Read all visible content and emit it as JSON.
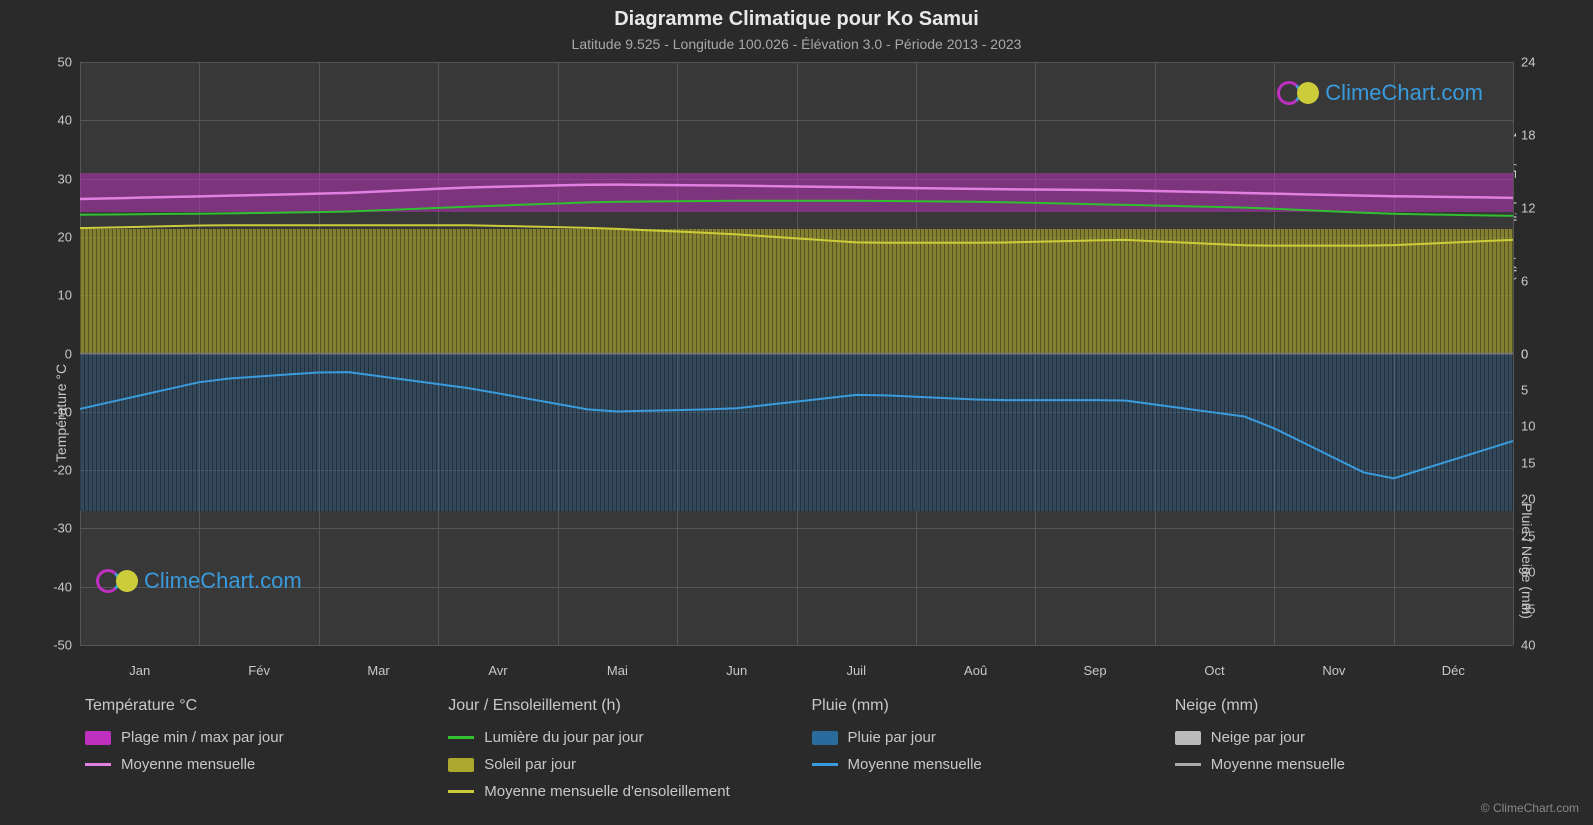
{
  "title": "Diagramme Climatique pour Ko Samui",
  "subtitle": "Latitude 9.525 - Longitude 100.026 - Élévation 3.0 - Période 2013 - 2023",
  "axis_left_label": "Température °C",
  "axis_right_top_label": "Jour / Ensoleillement (h)",
  "axis_right_bottom_label": "Pluie / Neige (mm)",
  "background_color": "#2a2a2a",
  "plot_bg_color": "#383838",
  "grid_color": "#555555",
  "text_color": "#c8c8c8",
  "title_color": "#e8e8e8",
  "months": [
    "Jan",
    "Fév",
    "Mar",
    "Avr",
    "Mai",
    "Jun",
    "Juil",
    "Aoû",
    "Sep",
    "Oct",
    "Nov",
    "Déc"
  ],
  "y_left_ticks": [
    50,
    40,
    30,
    20,
    10,
    0,
    -10,
    -20,
    -30,
    -40,
    -50
  ],
  "y_left_range": [
    -50,
    50
  ],
  "y_right_top_ticks": [
    24,
    18,
    12,
    6,
    0
  ],
  "y_right_top_range_maps_to": [
    50,
    0
  ],
  "y_right_bottom_ticks": [
    0,
    5,
    10,
    15,
    20,
    25,
    30,
    35,
    40
  ],
  "y_right_bottom_range_maps_to": [
    0,
    -50
  ],
  "colors": {
    "temp_range": "#c030c0",
    "temp_mean": "#e080e0",
    "daylight": "#30c030",
    "sunshine_area": "#aca82e",
    "sunshine_mean": "#cccc3a",
    "rain_area": "#2a6b9e",
    "rain_mean": "#3a9bdc",
    "snow_area": "#bbbbbb",
    "snow_mean": "#aaaaaa"
  },
  "series": {
    "temp_mean": [
      26.5,
      27,
      27.5,
      28.5,
      29,
      28.8,
      28.5,
      28.2,
      28,
      27.5,
      27,
      26.7
    ],
    "temp_min_band": [
      24,
      24.5,
      25,
      26,
      26.5,
      26.3,
      26,
      25.8,
      25.5,
      25,
      24.5,
      24.2
    ],
    "temp_max_band": [
      29,
      29.5,
      30,
      31,
      31.5,
      31,
      30.6,
      30.3,
      30,
      29.5,
      29,
      28.7
    ],
    "daylight": [
      23.8,
      24,
      24.3,
      25.2,
      26,
      26.2,
      26.2,
      26,
      25.5,
      25,
      24,
      23.6
    ],
    "sunshine_mean": [
      21.5,
      22,
      22,
      22,
      21.5,
      20.5,
      19,
      19,
      19.5,
      18.5,
      18.5,
      19.5
    ],
    "rain_mean_negC": [
      -9.5,
      -4.5,
      -3,
      -6,
      -10,
      -9.5,
      -7,
      -8,
      -8,
      -11,
      -22,
      -15
    ]
  },
  "legend": {
    "columns": [
      {
        "header": "Température °C",
        "items": [
          {
            "type": "swatch",
            "color": "#c030c0",
            "label": "Plage min / max par jour"
          },
          {
            "type": "line",
            "color": "#e080e0",
            "label": "Moyenne mensuelle"
          }
        ]
      },
      {
        "header": "Jour / Ensoleillement (h)",
        "items": [
          {
            "type": "line",
            "color": "#30c030",
            "label": "Lumière du jour par jour"
          },
          {
            "type": "swatch",
            "color": "#aca82e",
            "label": "Soleil par jour"
          },
          {
            "type": "line",
            "color": "#cccc3a",
            "label": "Moyenne mensuelle d'ensoleillement"
          }
        ]
      },
      {
        "header": "Pluie (mm)",
        "items": [
          {
            "type": "swatch",
            "color": "#2a6b9e",
            "label": "Pluie par jour"
          },
          {
            "type": "line",
            "color": "#3a9bdc",
            "label": "Moyenne mensuelle"
          }
        ]
      },
      {
        "header": "Neige (mm)",
        "items": [
          {
            "type": "swatch",
            "color": "#bbbbbb",
            "label": "Neige par jour"
          },
          {
            "type": "line",
            "color": "#aaaaaa",
            "label": "Moyenne mensuelle"
          }
        ]
      }
    ]
  },
  "watermark_text": "ClimeChart.com",
  "copyright_text": "© ClimeChart.com"
}
